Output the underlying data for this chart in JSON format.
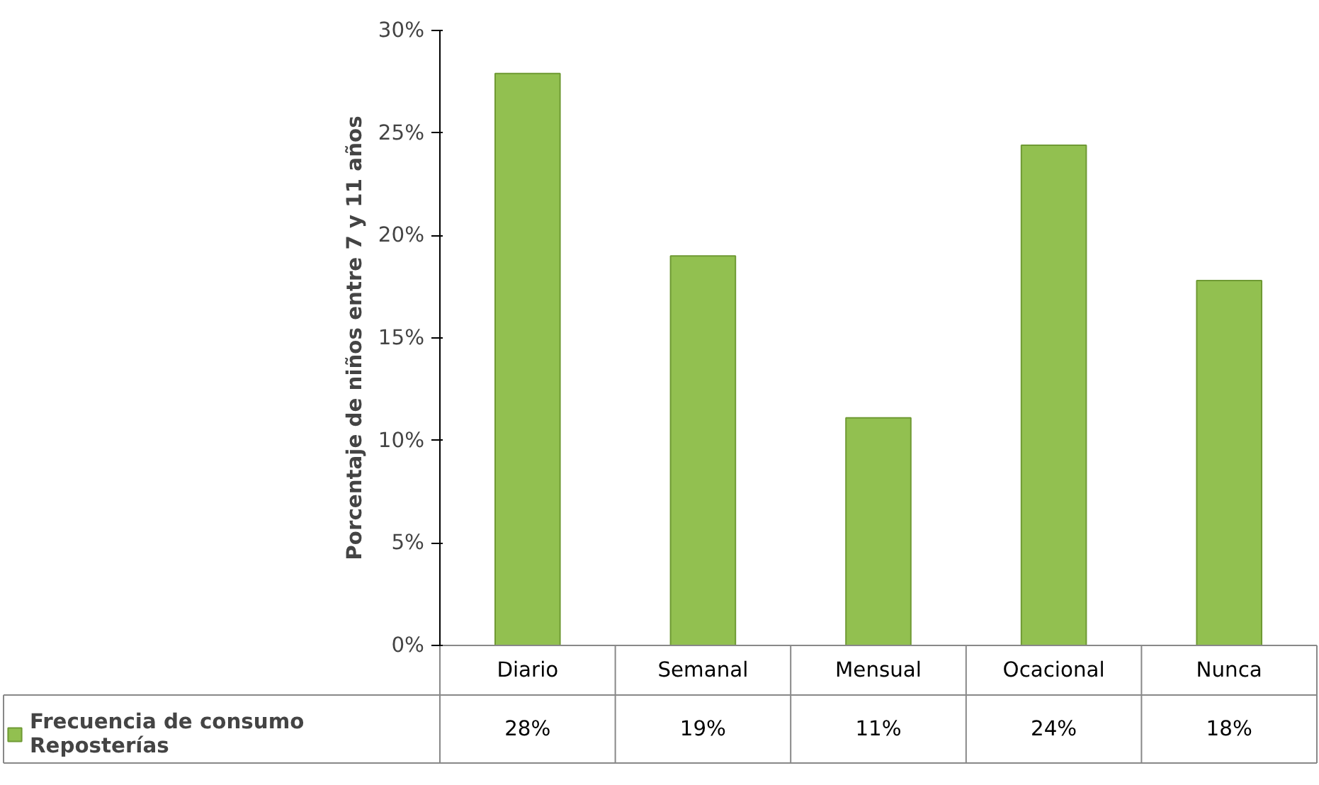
{
  "chart_data": {
    "type": "bar",
    "ylabel": "Porcentaje de niños entre 7 y 11 años",
    "categories": [
      "Diario",
      "Semanal",
      "Mensual",
      "Ocacional",
      "Nunca"
    ],
    "series": [
      {
        "name": "Frecuencia de consumo\nReposterías",
        "color": "#92c050",
        "values": [
          27.9,
          19,
          11.1,
          24.4,
          17.8
        ],
        "value_labels": [
          "28%",
          "19%",
          "11%",
          "24%",
          "18%"
        ]
      }
    ],
    "ylim": [
      0,
      30
    ],
    "yticks": [
      {
        "value": 0,
        "label": "0%"
      },
      {
        "value": 5,
        "label": "5%"
      },
      {
        "value": 10,
        "label": "10%"
      },
      {
        "value": 15,
        "label": "15%"
      },
      {
        "value": 20,
        "label": "20%"
      },
      {
        "value": 25,
        "label": "25%"
      },
      {
        "value": 30,
        "label": "30%"
      }
    ],
    "grid": false
  }
}
